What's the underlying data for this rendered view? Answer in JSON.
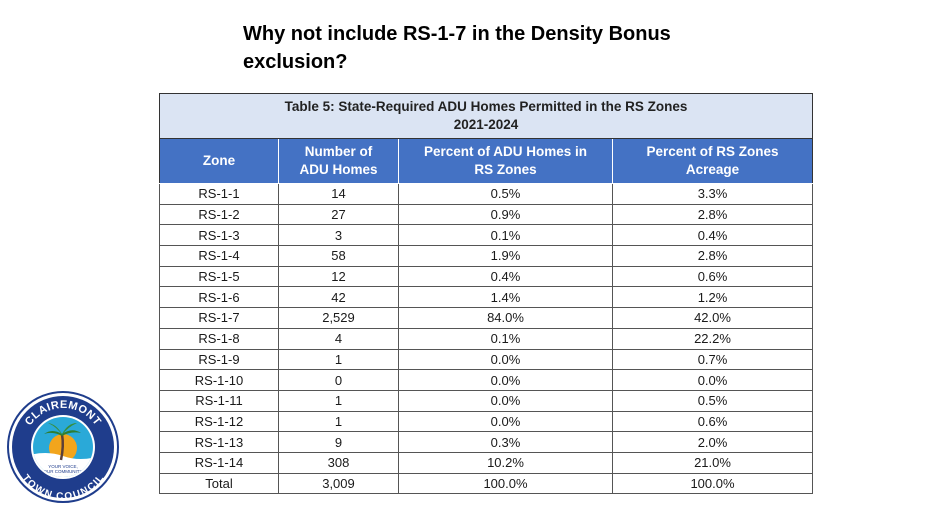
{
  "slide": {
    "title_line1": "Why not include RS-1-7 in the Density Bonus",
    "title_line2": "exclusion?"
  },
  "table": {
    "caption_line1": "Table 5: State-Required ADU Homes Permitted in the RS Zones",
    "caption_line2": "2021-2024",
    "headers": {
      "zone": "Zone",
      "num_line1": "Number of",
      "num_line2": "ADU Homes",
      "pct_homes_line1": "Percent of ADU Homes in",
      "pct_homes_line2": "RS Zones",
      "pct_acreage_line1": "Percent of RS Zones",
      "pct_acreage_line2": "Acreage"
    },
    "rows": [
      [
        "RS-1-1",
        "14",
        "0.5%",
        "3.3%"
      ],
      [
        "RS-1-2",
        "27",
        "0.9%",
        "2.8%"
      ],
      [
        "RS-1-3",
        "3",
        "0.1%",
        "0.4%"
      ],
      [
        "RS-1-4",
        "58",
        "1.9%",
        "2.8%"
      ],
      [
        "RS-1-5",
        "12",
        "0.4%",
        "0.6%"
      ],
      [
        "RS-1-6",
        "42",
        "1.4%",
        "1.2%"
      ],
      [
        "RS-1-7",
        "2,529",
        "84.0%",
        "42.0%"
      ],
      [
        "RS-1-8",
        "4",
        "0.1%",
        "22.2%"
      ],
      [
        "RS-1-9",
        "1",
        "0.0%",
        "0.7%"
      ],
      [
        "RS-1-10",
        "0",
        "0.0%",
        "0.0%"
      ],
      [
        "RS-1-11",
        "1",
        "0.0%",
        "0.5%"
      ],
      [
        "RS-1-12",
        "1",
        "0.0%",
        "0.6%"
      ],
      [
        "RS-1-13",
        "9",
        "0.3%",
        "2.0%"
      ],
      [
        "RS-1-14",
        "308",
        "10.2%",
        "21.0%"
      ],
      [
        "Total",
        "3,009",
        "100.0%",
        "100.0%"
      ]
    ]
  },
  "logo": {
    "top_text": "CLAIREMONT",
    "bottom_text": "TOWN COUNCIL",
    "center_text_1": "YOUR VOICE,",
    "center_text_2": "OUR COMMUNITY",
    "colors": {
      "ring": "#1f3d8c",
      "sky": "#2aa9d8",
      "sun": "#f2a51c",
      "palm": "#2e7d32"
    }
  }
}
